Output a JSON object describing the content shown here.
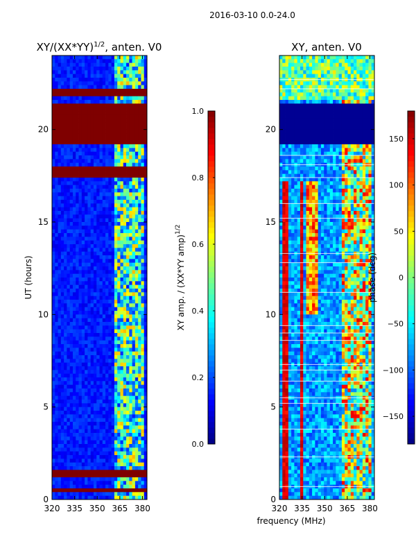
{
  "figure_title": "2016-03-10 0.0-24.0",
  "x_label": "frequency (MHz)",
  "colors": {
    "jet_stops": [
      "#00007f",
      "#0000ff",
      "#007fff",
      "#00ffff",
      "#7fff7f",
      "#ffff00",
      "#ff7f00",
      "#ff0000",
      "#7f0000"
    ]
  },
  "chart_data": [
    {
      "type": "heatmap",
      "title_main": "XY/(XX*YY)",
      "title_sup": "1/2",
      "title_tail": ", anten. V0",
      "xlabel": "",
      "ylabel": "UT (hours)",
      "xlim": [
        320,
        383
      ],
      "ylim": [
        0,
        24
      ],
      "x_ticks": [
        {
          "v": 320,
          "label": "320"
        },
        {
          "v": 335,
          "label": "335"
        },
        {
          "v": 350,
          "label": "350"
        },
        {
          "v": 365,
          "label": "365"
        },
        {
          "v": 380,
          "label": "380"
        }
      ],
      "y_ticks": [
        {
          "v": 0,
          "label": "0"
        },
        {
          "v": 5,
          "label": "5"
        },
        {
          "v": 10,
          "label": "10"
        },
        {
          "v": 15,
          "label": "15"
        },
        {
          "v": 20,
          "label": "20"
        }
      ],
      "colorbar": {
        "min": 0,
        "max": 1,
        "ticks": [
          {
            "v": 0,
            "label": "0.0"
          },
          {
            "v": 0.2,
            "label": "0.2"
          },
          {
            "v": 0.4,
            "label": "0.4"
          },
          {
            "v": 0.6,
            "label": "0.6"
          },
          {
            "v": 0.8,
            "label": "0.8"
          },
          {
            "v": 1.0,
            "label": "1.0"
          }
        ],
        "label_main": "XY amp. / (XX*YY amp)",
        "label_sup": "1/2"
      },
      "saturated_bands_ut": [
        [
          0.35,
          0.6
        ],
        [
          1.3,
          1.6
        ],
        [
          17.4,
          17.9
        ],
        [
          19.2,
          21.3
        ],
        [
          21.75,
          22.1
        ]
      ]
    },
    {
      "type": "heatmap",
      "title_main": "XY, anten. V0",
      "xlabel": "frequency (MHz)",
      "ylabel": "",
      "xlim": [
        320,
        383
      ],
      "ylim": [
        0,
        24
      ],
      "x_ticks": [
        {
          "v": 320,
          "label": "320"
        },
        {
          "v": 335,
          "label": "335"
        },
        {
          "v": 350,
          "label": "350"
        },
        {
          "v": 365,
          "label": "365"
        },
        {
          "v": 380,
          "label": "380"
        }
      ],
      "y_ticks": [
        {
          "v": 0,
          "label": "0"
        },
        {
          "v": 5,
          "label": "5"
        },
        {
          "v": 10,
          "label": "10"
        },
        {
          "v": 15,
          "label": "15"
        },
        {
          "v": 20,
          "label": "20"
        }
      ],
      "colorbar": {
        "min": -180,
        "max": 180,
        "ticks": [
          {
            "v": -150,
            "label": "−150"
          },
          {
            "v": -100,
            "label": "−100"
          },
          {
            "v": -50,
            "label": "−50"
          },
          {
            "v": 0,
            "label": "0"
          },
          {
            "v": 50,
            "label": "50"
          },
          {
            "v": 100,
            "label": "100"
          },
          {
            "v": 150,
            "label": "150"
          }
        ],
        "label_main": "phase (deg)"
      },
      "flat_band_ut": [
        19.3,
        21.3
      ]
    }
  ]
}
